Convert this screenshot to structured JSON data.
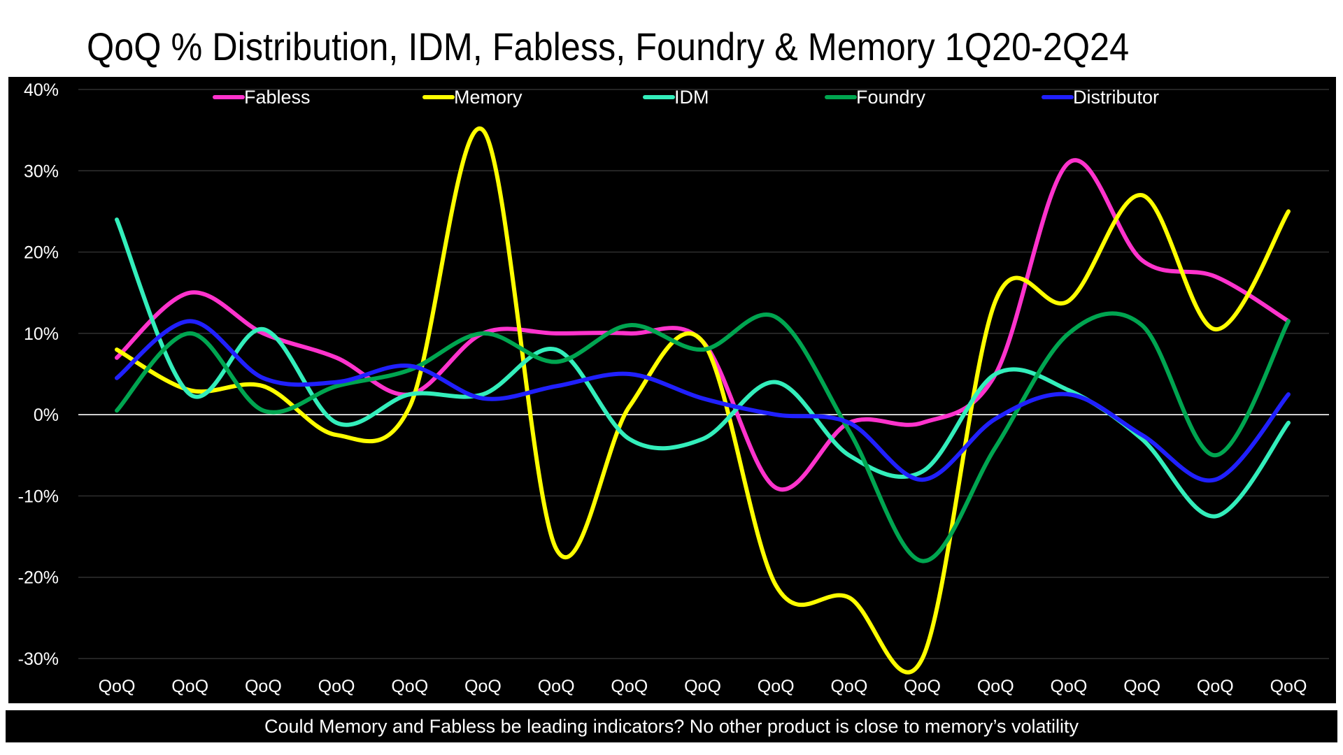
{
  "title": "QoQ % Distribution, IDM, Fabless, Foundry & Memory 1Q20-2Q24",
  "footer": "Could Memory and Fabless be leading indicators? No other product is close to memory’s volatility",
  "chart_data": {
    "type": "line",
    "title": "QoQ % Distribution, IDM, Fabless, Foundry & Memory 1Q20-2Q24",
    "xlabel": "",
    "ylabel": "",
    "categories": [
      "QoQ",
      "QoQ",
      "QoQ",
      "QoQ",
      "QoQ",
      "QoQ",
      "QoQ",
      "QoQ",
      "QoQ",
      "QoQ",
      "QoQ",
      "QoQ",
      "QoQ",
      "QoQ",
      "QoQ",
      "QoQ",
      "QoQ"
    ],
    "ylim": [
      -30,
      40
    ],
    "yticks": [
      "-30%",
      "-20%",
      "-10%",
      "0%",
      "10%",
      "20%",
      "30%",
      "40%"
    ],
    "ytick_values": [
      -30,
      -20,
      -10,
      0,
      10,
      20,
      30,
      40
    ],
    "grid": true,
    "background": "#000000",
    "legend_position": "top",
    "series": [
      {
        "name": "Fabless",
        "color": "#ff33cc",
        "values": [
          7,
          15,
          10,
          7,
          2.5,
          10,
          10,
          10,
          9,
          -9,
          -1,
          -1,
          5,
          31,
          19,
          17,
          11.5
        ]
      },
      {
        "name": "Memory",
        "color": "#ffff00",
        "values": [
          8,
          3,
          3.5,
          -2.5,
          1,
          35,
          -16.5,
          1,
          9,
          -21,
          -22.5,
          -30,
          14,
          14,
          27,
          10.5,
          25
        ]
      },
      {
        "name": "IDM",
        "color": "#33eebb",
        "values": [
          24,
          2.5,
          10.5,
          -1,
          2.5,
          2.5,
          8,
          -3,
          -3,
          4,
          -5,
          -7,
          5,
          3,
          -3,
          -12.5,
          -1
        ]
      },
      {
        "name": "Foundry",
        "color": "#00a550",
        "values": [
          0.5,
          10,
          0.5,
          3.5,
          5.5,
          10,
          6.5,
          11,
          8,
          12,
          -2,
          -18,
          -4,
          10,
          11,
          -5,
          11.5
        ]
      },
      {
        "name": "Distributor",
        "color": "#2020ff",
        "values": [
          4.5,
          11.5,
          4.5,
          4,
          6,
          2,
          3.5,
          5,
          2,
          0,
          -1,
          -8,
          -0.5,
          2.5,
          -2.5,
          -8,
          2.5
        ]
      }
    ]
  }
}
